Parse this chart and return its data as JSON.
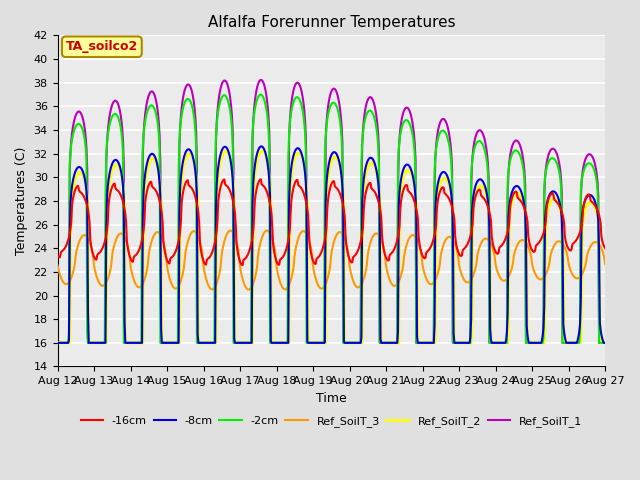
{
  "title": "Alfalfa Forerunner Temperatures",
  "xlabel": "Time",
  "ylabel": "Temperatures (C)",
  "ylim": [
    14,
    42
  ],
  "annotation": "TA_soilco2",
  "annotation_color": "#cc0000",
  "annotation_bg": "#ffff99",
  "annotation_border": "#aa8800",
  "bg_color": "#e0e0e0",
  "plot_bg": "#ebebeb",
  "grid_color": "#ffffff",
  "xtick_labels": [
    "Aug 12",
    "Aug 13",
    "Aug 14",
    "Aug 15",
    "Aug 16",
    "Aug 17",
    "Aug 18",
    "Aug 19",
    "Aug 20",
    "Aug 21",
    "Aug 22",
    "Aug 23",
    "Aug 24",
    "Aug 25",
    "Aug 26",
    "Aug 27"
  ],
  "series": {
    "neg16cm": {
      "color": "#ff0000",
      "label": "-16cm",
      "linewidth": 1.5
    },
    "neg8cm": {
      "color": "#0000dd",
      "label": "-8cm",
      "linewidth": 1.5
    },
    "neg2cm": {
      "color": "#00ee00",
      "label": "-2cm",
      "linewidth": 1.5
    },
    "ref3": {
      "color": "#ff9900",
      "label": "Ref_SoilT_3",
      "linewidth": 1.5
    },
    "ref2": {
      "color": "#ffff00",
      "label": "Ref_SoilT_2",
      "linewidth": 2.0
    },
    "ref1": {
      "color": "#bb00bb",
      "label": "Ref_SoilT_1",
      "linewidth": 1.5
    }
  }
}
